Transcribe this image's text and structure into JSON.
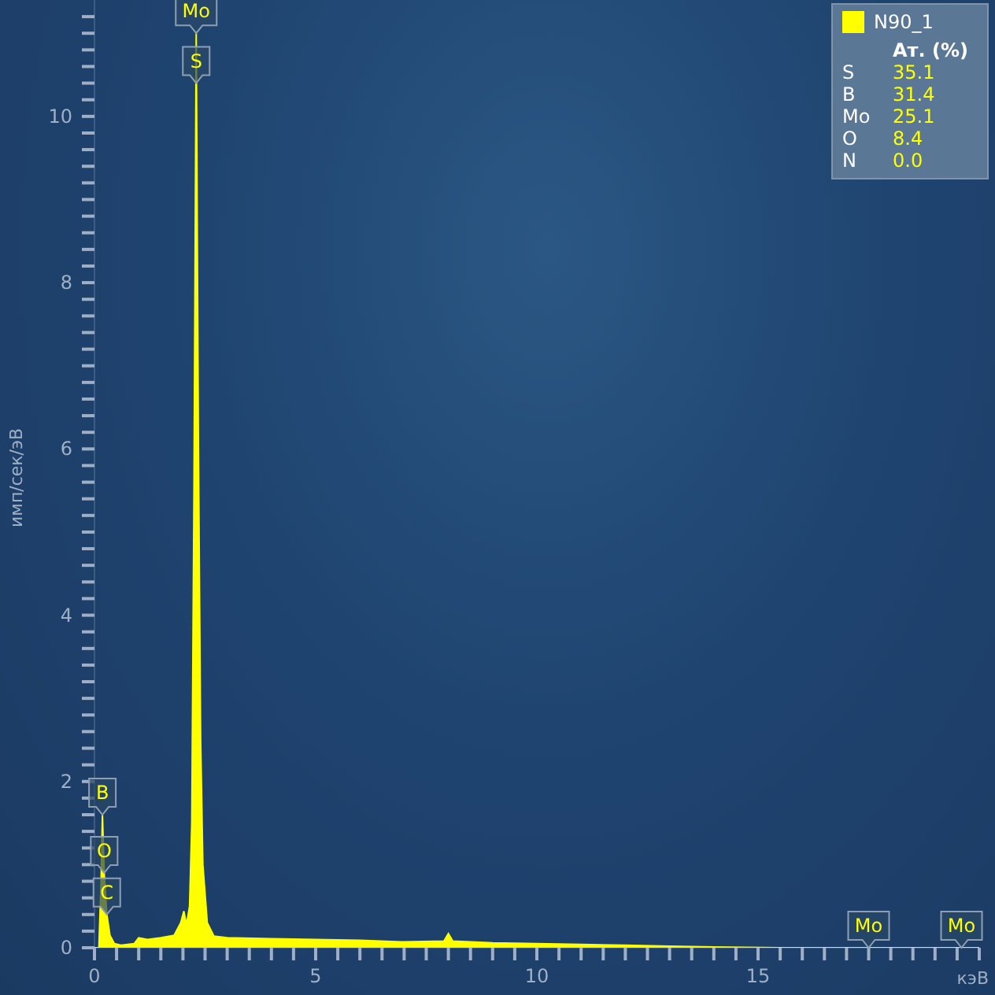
{
  "chart_data": {
    "type": "area",
    "xlabel": "кэВ",
    "ylabel": "имп/сек/эВ",
    "legend": "top right",
    "grid": false,
    "xlim": [
      0,
      20
    ],
    "ylim": [
      0,
      11.4
    ],
    "xticks": [
      0,
      {
        "value": 0.5,
        "label": null
      },
      {
        "value": 1,
        "label": null
      },
      {
        "value": 1.5,
        "label": null
      },
      {
        "value": 2,
        "label": null
      },
      {
        "value": 2.5,
        "label": null
      },
      {
        "value": 3,
        "label": null
      },
      {
        "value": 3.5,
        "label": null
      },
      {
        "value": 4,
        "label": null
      },
      {
        "value": 4.5,
        "label": null
      },
      5,
      {
        "value": 5.5,
        "label": null
      },
      {
        "value": 6,
        "label": null
      },
      {
        "value": 6.5,
        "label": null
      },
      {
        "value": 7,
        "label": null
      },
      {
        "value": 7.5,
        "label": null
      },
      {
        "value": 8,
        "label": null
      },
      {
        "value": 8.5,
        "label": null
      },
      {
        "value": 9,
        "label": null
      },
      {
        "value": 9.5,
        "label": null
      },
      10,
      {
        "value": 10.5,
        "label": null
      },
      {
        "value": 11,
        "label": null
      },
      {
        "value": 11.5,
        "label": null
      },
      {
        "value": 12,
        "label": null
      },
      {
        "value": 12.5,
        "label": null
      },
      {
        "value": 13,
        "label": null
      },
      {
        "value": 13.5,
        "label": null
      },
      {
        "value": 14,
        "label": null
      },
      {
        "value": 14.5,
        "label": null
      },
      15,
      {
        "value": 15.5,
        "label": null
      },
      {
        "value": 16,
        "label": null
      },
      {
        "value": 16.5,
        "label": null
      },
      {
        "value": 17,
        "label": null
      },
      {
        "value": 17.5,
        "label": null
      },
      {
        "value": 18,
        "label": null
      },
      {
        "value": 18.5,
        "label": null
      },
      {
        "value": 19,
        "label": null
      },
      {
        "value": 19.5,
        "label": null
      },
      {
        "value": 20,
        "label": null
      }
    ],
    "yticks": [
      0,
      {
        "value": 0.2,
        "label": null
      },
      {
        "value": 0.4,
        "label": null
      },
      {
        "value": 0.6,
        "label": null
      },
      {
        "value": 0.8,
        "label": null
      },
      {
        "value": 1,
        "label": null
      },
      {
        "value": 1.2,
        "label": null
      },
      {
        "value": 1.4,
        "label": null
      },
      {
        "value": 1.6,
        "label": null
      },
      {
        "value": 1.8,
        "label": null
      },
      2,
      {
        "value": 2.2,
        "label": null
      },
      {
        "value": 2.4,
        "label": null
      },
      {
        "value": 2.6,
        "label": null
      },
      {
        "value": 2.8,
        "label": null
      },
      {
        "value": 3,
        "label": null
      },
      {
        "value": 3.2,
        "label": null
      },
      {
        "value": 3.4,
        "label": null
      },
      {
        "value": 3.6,
        "label": null
      },
      {
        "value": 3.8,
        "label": null
      },
      4,
      {
        "value": 4.2,
        "label": null
      },
      {
        "value": 4.4,
        "label": null
      },
      {
        "value": 4.6,
        "label": null
      },
      {
        "value": 4.8,
        "label": null
      },
      {
        "value": 5,
        "label": null
      },
      {
        "value": 5.2,
        "label": null
      },
      {
        "value": 5.4,
        "label": null
      },
      {
        "value": 5.6,
        "label": null
      },
      {
        "value": 5.8,
        "label": null
      },
      6,
      {
        "value": 6.2,
        "label": null
      },
      {
        "value": 6.4,
        "label": null
      },
      {
        "value": 6.6,
        "label": null
      },
      {
        "value": 6.8,
        "label": null
      },
      {
        "value": 7,
        "label": null
      },
      {
        "value": 7.2,
        "label": null
      },
      {
        "value": 7.4,
        "label": null
      },
      {
        "value": 7.6,
        "label": null
      },
      {
        "value": 7.8,
        "label": null
      },
      8,
      {
        "value": 8.2,
        "label": null
      },
      {
        "value": 8.4,
        "label": null
      },
      {
        "value": 8.6,
        "label": null
      },
      {
        "value": 8.8,
        "label": null
      },
      {
        "value": 9,
        "label": null
      },
      {
        "value": 9.2,
        "label": null
      },
      {
        "value": 9.4,
        "label": null
      },
      {
        "value": 9.6,
        "label": null
      },
      {
        "value": 9.8,
        "label": null
      },
      10,
      {
        "value": 10.2,
        "label": null
      },
      {
        "value": 10.4,
        "label": null
      },
      {
        "value": 10.6,
        "label": null
      },
      {
        "value": 10.8,
        "label": null
      },
      {
        "value": 11,
        "label": null
      },
      {
        "value": 11.2,
        "label": null
      }
    ],
    "series": [
      {
        "name": "N90_1",
        "color": "#ffff00",
        "x": [
          0,
          0.1,
          0.15,
          0.18,
          0.22,
          0.28,
          0.35,
          0.45,
          0.6,
          0.9,
          1.0,
          1.2,
          1.5,
          1.8,
          1.95,
          2.02,
          2.08,
          2.15,
          2.2,
          2.25,
          2.3,
          2.35,
          2.4,
          2.45,
          2.55,
          2.7,
          3,
          4,
          5,
          6,
          7,
          7.9,
          8.0,
          8.1,
          9,
          10,
          11,
          12,
          13,
          14,
          15.5,
          17.5,
          19.6,
          20
        ],
        "values": [
          0,
          0,
          0.8,
          1.6,
          0.9,
          0.4,
          0.15,
          0.05,
          0.03,
          0.05,
          0.12,
          0.1,
          0.12,
          0.15,
          0.3,
          0.44,
          0.28,
          0.5,
          1.5,
          5.5,
          11.0,
          6,
          2.5,
          1.0,
          0.3,
          0.14,
          0.12,
          0.11,
          0.1,
          0.09,
          0.07,
          0.08,
          0.17,
          0.08,
          0.06,
          0.05,
          0.04,
          0.03,
          0.02,
          0.01,
          0,
          0,
          0,
          0
        ]
      }
    ],
    "annotations": [
      "Ат. (%)",
      "S 35.1",
      "B 31.4",
      "Mo 25.1",
      "O 8.4",
      "N 0.0",
      {
        "text": "Mo",
        "x": 2.3,
        "y": 11.0
      },
      {
        "text": "S",
        "x": 2.3,
        "y": 10.4
      },
      {
        "text": "B",
        "x": 0.18,
        "y": 1.6
      },
      {
        "text": "C",
        "x": 0.28,
        "y": 0.4
      },
      {
        "text": "O",
        "x": 0.22,
        "y": 0.9
      },
      {
        "text": "Mo",
        "x": 17.5,
        "y": 0
      },
      {
        "text": "Mo",
        "x": 19.6,
        "y": 0
      }
    ]
  }
}
